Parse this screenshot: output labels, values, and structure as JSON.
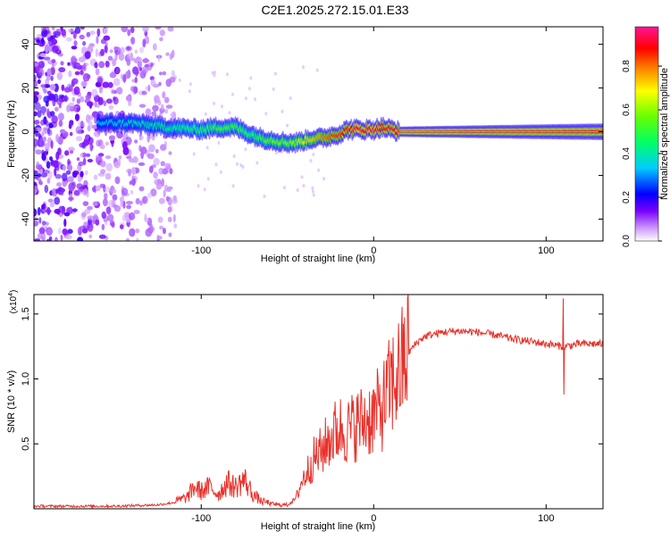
{
  "title": "C2E1.2025.272.15.01.E33",
  "chart_data": [
    {
      "type": "heatmap",
      "xlabel": "Height of straight line (km)",
      "ylabel": "Frequency (Hz)",
      "xlim": [
        -197,
        133
      ],
      "ylim": [
        -50,
        48
      ],
      "xticks": [
        -100,
        0,
        100
      ],
      "xtick_labels": [
        "-100",
        "0",
        "100"
      ],
      "yticks": [
        -40,
        -20,
        0,
        20,
        40
      ],
      "ytick_labels": [
        "-40",
        "-20",
        "0",
        "20",
        "40"
      ],
      "colorbar": {
        "label": "Normalized spectral amplitude",
        "range": [
          0,
          0.98
        ],
        "ticks": [
          0,
          0.2,
          0.4,
          0.6,
          0.8
        ],
        "tick_labels": [
          "0.0",
          "0.2",
          "0.4",
          "0.6",
          "0.8"
        ]
      },
      "noise_region_km": [
        -197,
        -115
      ],
      "band_path": {
        "x": [
          -160,
          -140,
          -120,
          -100,
          -90,
          -80,
          -72,
          -65,
          -58,
          -50,
          -45,
          -40,
          -35,
          -30,
          -25,
          -20,
          -15,
          -10,
          -5,
          0,
          5,
          10,
          15,
          133
        ],
        "freq": [
          4,
          4,
          2,
          1,
          2,
          2,
          -1,
          -3,
          -4,
          -5,
          -5,
          -4,
          -3,
          -3,
          -2,
          -1,
          1,
          1,
          1,
          1,
          2,
          1,
          0,
          0
        ],
        "amplitude": [
          0.35,
          0.4,
          0.45,
          0.5,
          0.55,
          0.55,
          0.5,
          0.55,
          0.6,
          0.6,
          0.65,
          0.7,
          0.75,
          0.8,
          0.85,
          0.88,
          0.9,
          0.95,
          0.93,
          0.95,
          0.9,
          0.92,
          0.93,
          0.92
        ]
      }
    },
    {
      "type": "line",
      "xlabel": "Height of straight line (km)",
      "ylabel": "SNR (10 * v/v)",
      "y_scale_label": "(x10",
      "y_scale_exponent": "4",
      "y_scale_close": ")",
      "xlim": [
        -197,
        133
      ],
      "ylim": [
        0,
        1.65
      ],
      "xticks": [
        -100,
        0,
        100
      ],
      "xtick_labels": [
        "-100",
        "0",
        "100"
      ],
      "yticks": [
        0.5,
        1.0,
        1.5
      ],
      "ytick_labels": [
        "0.5",
        "1.0",
        "1.5"
      ],
      "series": [
        {
          "name": "SNR",
          "color": "#e8312a",
          "x": [
            -197,
            -150,
            -125,
            -115,
            -108,
            -104,
            -100,
            -95,
            -90,
            -85,
            -80,
            -75,
            -70,
            -65,
            -60,
            -55,
            -50,
            -45,
            -42,
            -38,
            -35,
            -30,
            -25,
            -20,
            -15,
            -10,
            -5,
            0,
            5,
            10,
            15,
            20,
            25,
            30,
            40,
            50,
            60,
            70,
            80,
            90,
            100,
            105,
            110,
            115,
            120,
            133
          ],
          "values": [
            0.02,
            0.02,
            0.03,
            0.05,
            0.08,
            0.15,
            0.12,
            0.15,
            0.1,
            0.18,
            0.15,
            0.2,
            0.1,
            0.05,
            0.04,
            0.03,
            0.03,
            0.08,
            0.2,
            0.3,
            0.38,
            0.45,
            0.55,
            0.62,
            0.6,
            0.65,
            0.68,
            0.72,
            0.78,
            0.95,
            1.05,
            1.2,
            1.28,
            1.33,
            1.36,
            1.37,
            1.36,
            1.34,
            1.31,
            1.29,
            1.27,
            1.26,
            1.25,
            1.26,
            1.27,
            1.27
          ],
          "spike": {
            "x": 110,
            "max": 1.62,
            "min": 0.88
          }
        }
      ]
    }
  ],
  "colors": {
    "line": "#e8312a",
    "background": "#ffffff",
    "axis": "#000000"
  }
}
